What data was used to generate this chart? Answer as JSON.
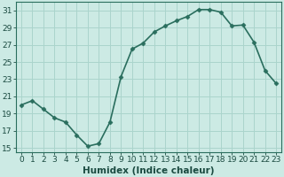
{
  "x": [
    0,
    1,
    2,
    3,
    4,
    5,
    6,
    7,
    8,
    9,
    10,
    11,
    12,
    13,
    14,
    15,
    16,
    17,
    18,
    19,
    20,
    21,
    22,
    23
  ],
  "y": [
    20,
    20.5,
    19.5,
    18.5,
    18,
    16.5,
    15.2,
    15.5,
    18,
    23.3,
    26.5,
    27.2,
    28.5,
    29.2,
    29.8,
    30.3,
    31.1,
    31.1,
    30.8,
    29.2,
    29.3,
    27.3,
    24.0,
    22.5
  ],
  "line_color": "#2a6e5e",
  "marker_color": "#2a6e5e",
  "bg_color": "#cceae4",
  "grid_color": "#aad4cc",
  "xlabel": "Humidex (Indice chaleur)",
  "xlim": [
    -0.5,
    23.5
  ],
  "ylim": [
    14.5,
    32
  ],
  "yticks": [
    15,
    17,
    19,
    21,
    23,
    25,
    27,
    29,
    31
  ],
  "xticks": [
    0,
    1,
    2,
    3,
    4,
    5,
    6,
    7,
    8,
    9,
    10,
    11,
    12,
    13,
    14,
    15,
    16,
    17,
    18,
    19,
    20,
    21,
    22,
    23
  ],
  "xlabel_fontsize": 7.5,
  "tick_fontsize": 6.5,
  "line_width": 1.2,
  "marker_size": 2.5
}
